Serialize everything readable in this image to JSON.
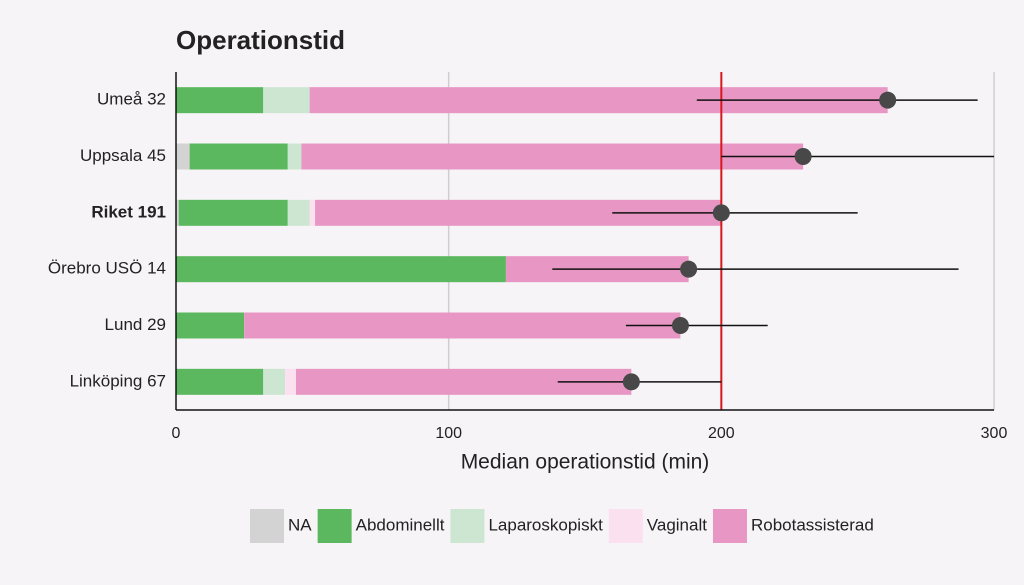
{
  "chart_data": {
    "type": "stacked-bar-h",
    "title": "Operationstid",
    "x_label": "Median operationstid (min)",
    "categories": [
      "Umeå 32",
      "Uppsala 45",
      "Riket 191",
      "Örebro USÖ 14",
      "Lund 29",
      "Linköping 67"
    ],
    "bold_category_index": 2,
    "series": [
      {
        "name": "NA",
        "color": "#d3d3d3",
        "values": [
          0,
          5,
          1,
          0,
          0,
          0
        ]
      },
      {
        "name": "Abdominellt",
        "color": "#5cb85f",
        "values": [
          32,
          36,
          40,
          121,
          25,
          32
        ]
      },
      {
        "name": "Laparoskopiskt",
        "color": "#cde6d2",
        "values": [
          17,
          5,
          8,
          0,
          0,
          8
        ]
      },
      {
        "name": "Vaginalt",
        "color": "#fbe0ef",
        "values": [
          0,
          0,
          2,
          0,
          0,
          4
        ]
      },
      {
        "name": "Robotassisterad",
        "color": "#e897c4",
        "values": [
          212,
          184,
          149,
          67,
          160,
          123
        ]
      }
    ],
    "medians": [
      261,
      230,
      200,
      188,
      185,
      167
    ],
    "error_low": [
      191,
      200,
      160,
      138,
      165,
      140
    ],
    "error_high": [
      294,
      300,
      250,
      287,
      217,
      200
    ],
    "reference_line": {
      "value": 200,
      "color": "#d7191c"
    },
    "xlim": [
      0,
      300
    ],
    "xticks": [
      0,
      100,
      200,
      300
    ],
    "grid": true
  }
}
